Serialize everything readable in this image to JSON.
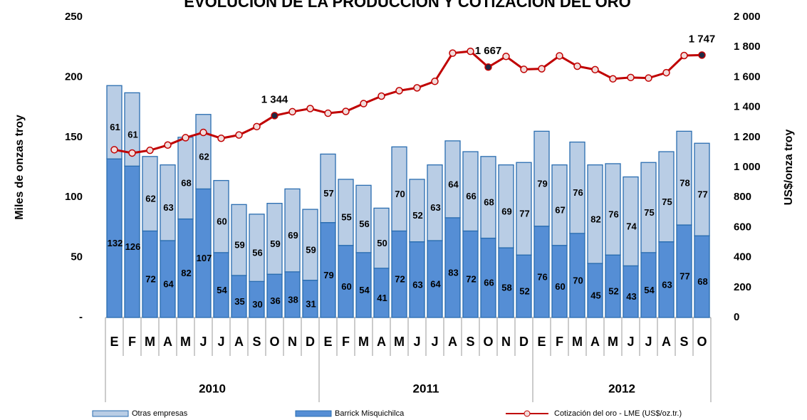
{
  "chart_data": {
    "type": "combo",
    "title": "EVOLUCIÓN DE LA PRODUCCIÓN Y COTIZACIÓN DEL ORO",
    "y_label": "Miles de onzas troy",
    "y2_label": "US$/onza troy",
    "categories": [
      "E",
      "F",
      "M",
      "A",
      "M",
      "J",
      "J",
      "A",
      "S",
      "O",
      "N",
      "D",
      "E",
      "F",
      "M",
      "A",
      "M",
      "J",
      "J",
      "A",
      "S",
      "O",
      "N",
      "D",
      "E",
      "F",
      "M",
      "A",
      "M",
      "J",
      "J",
      "A",
      "S",
      "O"
    ],
    "year_groups": [
      {
        "label": "2010",
        "count": 12
      },
      {
        "label": "2011",
        "count": 12
      },
      {
        "label": "2012",
        "count": 10
      }
    ],
    "ylim": [
      0,
      250
    ],
    "yticks": [
      {
        "value": 0,
        "label": "-"
      },
      50,
      100,
      150,
      200,
      250
    ],
    "y2lim": [
      0,
      2000
    ],
    "y2ticks": [
      0,
      200,
      400,
      600,
      800,
      {
        "value": 1000,
        "label": "1 000"
      },
      {
        "value": 1200,
        "label": "1 200"
      },
      {
        "value": 1400,
        "label": "1 400"
      },
      {
        "value": 1600,
        "label": "1 600"
      },
      {
        "value": 1800,
        "label": "1 800"
      },
      {
        "value": 2000,
        "label": "2 000"
      }
    ],
    "series": [
      {
        "name": "Barrick Misquichilca",
        "type": "bar",
        "color": "#558ed5",
        "values": [
          132,
          126,
          72,
          64,
          82,
          107,
          54,
          35,
          30,
          36,
          38,
          31,
          79,
          60,
          54,
          41,
          72,
          63,
          64,
          83,
          72,
          66,
          58,
          52,
          76,
          60,
          70,
          45,
          52,
          43,
          54,
          63,
          77,
          68
        ]
      },
      {
        "name": "Otras empresas",
        "type": "bar",
        "color": "#b9cde5",
        "values": [
          61,
          61,
          62,
          63,
          68,
          62,
          60,
          59,
          56,
          59,
          69,
          59,
          57,
          55,
          56,
          50,
          70,
          52,
          63,
          64,
          66,
          68,
          69,
          77,
          79,
          67,
          76,
          82,
          76,
          74,
          75,
          75,
          78,
          77
        ]
      },
      {
        "name": "Cotización del oro - LME (US$/oz.tr.)",
        "type": "line",
        "axis": "y2",
        "color": "#c00000",
        "values": [
          1117,
          1095,
          1113,
          1148,
          1197,
          1232,
          1193,
          1215,
          1271,
          1344,
          1370,
          1391,
          1360,
          1372,
          1424,
          1474,
          1510,
          1529,
          1572,
          1760,
          1772,
          1667,
          1738,
          1652,
          1656,
          1742,
          1673,
          1650,
          1589,
          1598,
          1594,
          1630,
          1744,
          1747
        ],
        "value_labels": [
          null,
          null,
          null,
          null,
          null,
          null,
          null,
          null,
          null,
          "1 344",
          null,
          null,
          null,
          null,
          null,
          null,
          null,
          null,
          null,
          null,
          null,
          "1 667",
          null,
          null,
          null,
          null,
          null,
          null,
          null,
          null,
          null,
          null,
          null,
          "1 747"
        ]
      }
    ]
  }
}
